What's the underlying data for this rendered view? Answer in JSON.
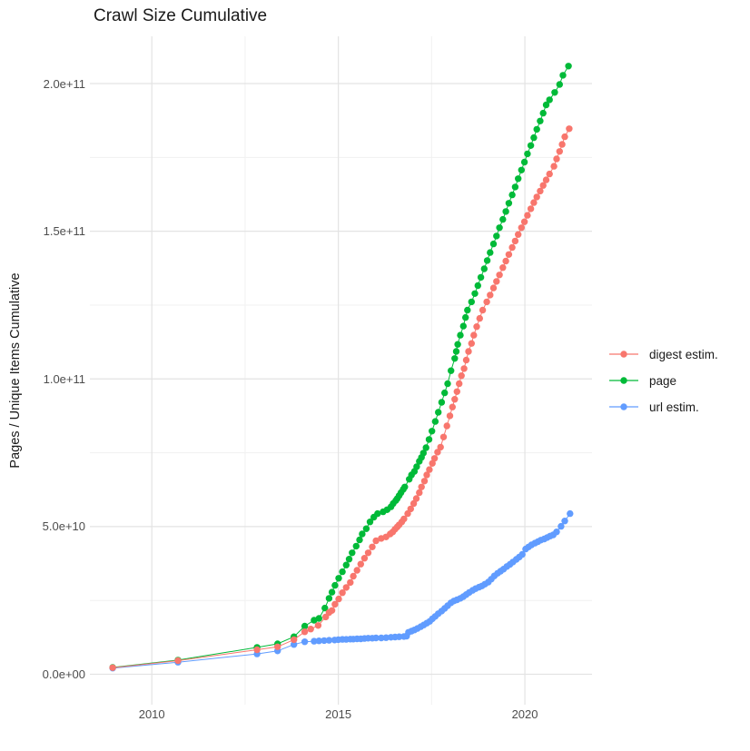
{
  "colors": {
    "background": "#FFFFFF",
    "grid_major": "#E3E3E3",
    "grid_minor": "#F1F1F1",
    "axis_text": "#4D4D4D",
    "text": "#1A1A1A",
    "digest": "#F8766D",
    "page": "#00BA38",
    "url": "#619CFF"
  },
  "chart_data": {
    "type": "scatter",
    "title": "Crawl Size Cumulative",
    "xlabel": "",
    "ylabel": "Pages / Unique Items Cumulative",
    "grid": true,
    "legend_position": "right",
    "xlim": [
      2008.34,
      2021.8
    ],
    "ylim_e9": [
      -10.3,
      216.0
    ],
    "y_value_scale": "1e9",
    "x_ticks": [
      {
        "label": "2010",
        "value": 2010
      },
      {
        "label": "2015",
        "value": 2015
      },
      {
        "label": "2020",
        "value": 2020
      }
    ],
    "x_minor_ticks": [
      2012.5,
      2017.5
    ],
    "y_ticks": [
      {
        "label": "0.0e+00",
        "value": 0
      },
      {
        "label": "5.0e+10",
        "value": 50
      },
      {
        "label": "1.0e+11",
        "value": 100
      },
      {
        "label": "1.5e+11",
        "value": 150
      },
      {
        "label": "2.0e+11",
        "value": 200
      }
    ],
    "y_minor_ticks": [
      25,
      75,
      125,
      175
    ],
    "draw_order": [
      1,
      2,
      0
    ],
    "series": [
      {
        "name": "digest estim.",
        "color": "#F8766D",
        "points": [
          [
            2008.95,
            2.2
          ],
          [
            2010.7,
            4.6
          ],
          [
            2012.82,
            8.3
          ],
          [
            2013.37,
            9.3
          ],
          [
            2013.81,
            11.7
          ],
          [
            2014.1,
            14.4
          ],
          [
            2014.26,
            15.3
          ],
          [
            2014.46,
            16.5
          ],
          [
            2014.66,
            19.4
          ],
          [
            2014.75,
            20.9
          ],
          [
            2014.83,
            21.6
          ],
          [
            2014.91,
            23.7
          ],
          [
            2015.01,
            25.5
          ],
          [
            2015.11,
            27.6
          ],
          [
            2015.21,
            29.4
          ],
          [
            2015.32,
            31.1
          ],
          [
            2015.4,
            33.2
          ],
          [
            2015.5,
            35.2
          ],
          [
            2015.6,
            37.3
          ],
          [
            2015.7,
            39.3
          ],
          [
            2015.8,
            41.1
          ],
          [
            2015.91,
            43.1
          ],
          [
            2016.01,
            45.2
          ],
          [
            2016.15,
            46.0
          ],
          [
            2016.28,
            46.5
          ],
          [
            2016.39,
            47.5
          ],
          [
            2016.46,
            48.2
          ],
          [
            2016.52,
            49.1
          ],
          [
            2016.58,
            49.9
          ],
          [
            2016.63,
            50.6
          ],
          [
            2016.7,
            51.6
          ],
          [
            2016.76,
            52.6
          ],
          [
            2016.86,
            54.4
          ],
          [
            2016.94,
            56.0
          ],
          [
            2017.02,
            57.8
          ],
          [
            2017.09,
            59.5
          ],
          [
            2017.17,
            61.5
          ],
          [
            2017.23,
            63.4
          ],
          [
            2017.31,
            65.4
          ],
          [
            2017.37,
            67.5
          ],
          [
            2017.44,
            69.3
          ],
          [
            2017.52,
            71.4
          ],
          [
            2017.58,
            73.1
          ],
          [
            2017.66,
            75.2
          ],
          [
            2017.74,
            76.9
          ],
          [
            2017.82,
            80.3
          ],
          [
            2017.91,
            84.1
          ],
          [
            2017.99,
            87.5
          ],
          [
            2018.06,
            90.5
          ],
          [
            2018.12,
            93.1
          ],
          [
            2018.18,
            95.7
          ],
          [
            2018.24,
            98.4
          ],
          [
            2018.3,
            101.1
          ],
          [
            2018.37,
            103.5
          ],
          [
            2018.43,
            106.4
          ],
          [
            2018.49,
            109.3
          ],
          [
            2018.57,
            112.0
          ],
          [
            2018.63,
            114.8
          ],
          [
            2018.71,
            117.7
          ],
          [
            2018.79,
            120.5
          ],
          [
            2018.87,
            123.3
          ],
          [
            2018.98,
            126.1
          ],
          [
            2019.07,
            128.4
          ],
          [
            2019.16,
            130.8
          ],
          [
            2019.24,
            133.0
          ],
          [
            2019.32,
            135.2
          ],
          [
            2019.41,
            137.7
          ],
          [
            2019.49,
            139.9
          ],
          [
            2019.57,
            142.1
          ],
          [
            2019.66,
            144.5
          ],
          [
            2019.74,
            146.7
          ],
          [
            2019.82,
            148.9
          ],
          [
            2019.91,
            151.2
          ],
          [
            2019.99,
            153.2
          ],
          [
            2020.07,
            155.4
          ],
          [
            2020.16,
            157.6
          ],
          [
            2020.24,
            159.7
          ],
          [
            2020.32,
            161.6
          ],
          [
            2020.41,
            163.6
          ],
          [
            2020.49,
            165.5
          ],
          [
            2020.57,
            167.4
          ],
          [
            2020.66,
            169.4
          ],
          [
            2020.78,
            172.0
          ],
          [
            2020.85,
            174.5
          ],
          [
            2020.93,
            177.0
          ],
          [
            2021.0,
            179.4
          ],
          [
            2021.07,
            182.0
          ],
          [
            2021.19,
            184.7
          ]
        ]
      },
      {
        "name": "page",
        "color": "#00BA38",
        "points": [
          [
            2008.95,
            2.3
          ],
          [
            2010.7,
            4.8
          ],
          [
            2012.82,
            9.1
          ],
          [
            2013.37,
            10.3
          ],
          [
            2013.81,
            12.7
          ],
          [
            2014.1,
            16.3
          ],
          [
            2014.35,
            18.3
          ],
          [
            2014.48,
            18.9
          ],
          [
            2014.64,
            22.4
          ],
          [
            2014.75,
            25.7
          ],
          [
            2014.83,
            27.8
          ],
          [
            2014.91,
            30.1
          ],
          [
            2015.01,
            32.5
          ],
          [
            2015.11,
            34.7
          ],
          [
            2015.21,
            37.0
          ],
          [
            2015.29,
            39.0
          ],
          [
            2015.37,
            41.1
          ],
          [
            2015.48,
            43.4
          ],
          [
            2015.57,
            45.5
          ],
          [
            2015.64,
            47.5
          ],
          [
            2015.75,
            49.3
          ],
          [
            2015.85,
            51.6
          ],
          [
            2015.95,
            53.2
          ],
          [
            2016.05,
            54.4
          ],
          [
            2016.2,
            55.0
          ],
          [
            2016.31,
            55.7
          ],
          [
            2016.41,
            56.7
          ],
          [
            2016.47,
            57.8
          ],
          [
            2016.54,
            58.8
          ],
          [
            2016.58,
            59.5
          ],
          [
            2016.63,
            60.5
          ],
          [
            2016.68,
            61.5
          ],
          [
            2016.74,
            62.6
          ],
          [
            2016.78,
            63.4
          ],
          [
            2016.9,
            66.0
          ],
          [
            2016.96,
            67.5
          ],
          [
            2017.04,
            68.7
          ],
          [
            2017.1,
            70.3
          ],
          [
            2017.17,
            72.1
          ],
          [
            2017.23,
            73.4
          ],
          [
            2017.28,
            74.9
          ],
          [
            2017.35,
            76.7
          ],
          [
            2017.43,
            79.5
          ],
          [
            2017.51,
            82.3
          ],
          [
            2017.6,
            85.6
          ],
          [
            2017.68,
            88.7
          ],
          [
            2017.77,
            92.1
          ],
          [
            2017.85,
            95.3
          ],
          [
            2017.93,
            98.4
          ],
          [
            2018.02,
            102.8
          ],
          [
            2018.12,
            106.9
          ],
          [
            2018.16,
            109.3
          ],
          [
            2018.2,
            111.7
          ],
          [
            2018.27,
            114.8
          ],
          [
            2018.35,
            117.9
          ],
          [
            2018.41,
            120.8
          ],
          [
            2018.46,
            123.3
          ],
          [
            2018.57,
            126.1
          ],
          [
            2018.66,
            128.9
          ],
          [
            2018.74,
            131.6
          ],
          [
            2018.82,
            134.4
          ],
          [
            2018.91,
            137.3
          ],
          [
            2018.99,
            140.1
          ],
          [
            2019.07,
            142.8
          ],
          [
            2019.16,
            145.7
          ],
          [
            2019.24,
            148.4
          ],
          [
            2019.32,
            151.2
          ],
          [
            2019.41,
            154.0
          ],
          [
            2019.49,
            156.7
          ],
          [
            2019.57,
            159.5
          ],
          [
            2019.66,
            162.3
          ],
          [
            2019.74,
            165.0
          ],
          [
            2019.82,
            167.8
          ],
          [
            2019.91,
            170.7
          ],
          [
            2019.99,
            173.4
          ],
          [
            2020.07,
            176.2
          ],
          [
            2020.16,
            179.0
          ],
          [
            2020.24,
            181.7
          ],
          [
            2020.32,
            184.5
          ],
          [
            2020.41,
            187.3
          ],
          [
            2020.49,
            190.0
          ],
          [
            2020.57,
            192.8
          ],
          [
            2020.66,
            194.5
          ],
          [
            2020.8,
            197.0
          ],
          [
            2020.93,
            199.7
          ],
          [
            2021.02,
            202.8
          ],
          [
            2021.17,
            205.9
          ]
        ]
      },
      {
        "name": "url estim.",
        "color": "#619CFF",
        "points": [
          [
            2008.95,
            2.1
          ],
          [
            2010.7,
            4.1
          ],
          [
            2012.82,
            6.9
          ],
          [
            2013.37,
            7.9
          ],
          [
            2013.81,
            10.1
          ],
          [
            2014.1,
            11.0
          ],
          [
            2014.35,
            11.2
          ],
          [
            2014.48,
            11.3
          ],
          [
            2014.62,
            11.4
          ],
          [
            2014.75,
            11.5
          ],
          [
            2014.9,
            11.6
          ],
          [
            2015.0,
            11.7
          ],
          [
            2015.11,
            11.8
          ],
          [
            2015.21,
            11.8
          ],
          [
            2015.32,
            11.9
          ],
          [
            2015.4,
            11.9
          ],
          [
            2015.5,
            12.0
          ],
          [
            2015.6,
            12.0
          ],
          [
            2015.7,
            12.1
          ],
          [
            2015.8,
            12.2
          ],
          [
            2015.91,
            12.2
          ],
          [
            2016.01,
            12.3
          ],
          [
            2016.15,
            12.3
          ],
          [
            2016.28,
            12.4
          ],
          [
            2016.41,
            12.5
          ],
          [
            2016.52,
            12.6
          ],
          [
            2016.63,
            12.7
          ],
          [
            2016.76,
            12.8
          ],
          [
            2016.83,
            12.9
          ],
          [
            2016.88,
            14.2
          ],
          [
            2016.96,
            14.6
          ],
          [
            2017.04,
            15.0
          ],
          [
            2017.12,
            15.5
          ],
          [
            2017.21,
            16.1
          ],
          [
            2017.29,
            16.7
          ],
          [
            2017.37,
            17.3
          ],
          [
            2017.45,
            17.9
          ],
          [
            2017.52,
            18.8
          ],
          [
            2017.6,
            19.6
          ],
          [
            2017.68,
            20.5
          ],
          [
            2017.77,
            21.4
          ],
          [
            2017.85,
            22.3
          ],
          [
            2017.93,
            23.2
          ],
          [
            2018.02,
            24.2
          ],
          [
            2018.1,
            24.8
          ],
          [
            2018.18,
            25.2
          ],
          [
            2018.27,
            25.7
          ],
          [
            2018.35,
            26.3
          ],
          [
            2018.43,
            27.0
          ],
          [
            2018.51,
            27.7
          ],
          [
            2018.6,
            28.4
          ],
          [
            2018.68,
            29.0
          ],
          [
            2018.77,
            29.5
          ],
          [
            2018.85,
            29.9
          ],
          [
            2018.93,
            30.5
          ],
          [
            2019.02,
            31.2
          ],
          [
            2019.1,
            32.2
          ],
          [
            2019.18,
            33.3
          ],
          [
            2019.27,
            34.2
          ],
          [
            2019.35,
            34.9
          ],
          [
            2019.43,
            35.6
          ],
          [
            2019.52,
            36.5
          ],
          [
            2019.6,
            37.2
          ],
          [
            2019.68,
            38.0
          ],
          [
            2019.77,
            38.9
          ],
          [
            2019.85,
            39.7
          ],
          [
            2019.93,
            40.6
          ],
          [
            2020.02,
            42.4
          ],
          [
            2020.1,
            43.1
          ],
          [
            2020.18,
            43.8
          ],
          [
            2020.27,
            44.4
          ],
          [
            2020.35,
            44.9
          ],
          [
            2020.43,
            45.4
          ],
          [
            2020.52,
            45.8
          ],
          [
            2020.6,
            46.3
          ],
          [
            2020.68,
            46.8
          ],
          [
            2020.76,
            47.2
          ],
          [
            2020.85,
            48.2
          ],
          [
            2020.97,
            50.1
          ],
          [
            2021.07,
            51.9
          ],
          [
            2021.21,
            54.4
          ]
        ]
      }
    ]
  }
}
